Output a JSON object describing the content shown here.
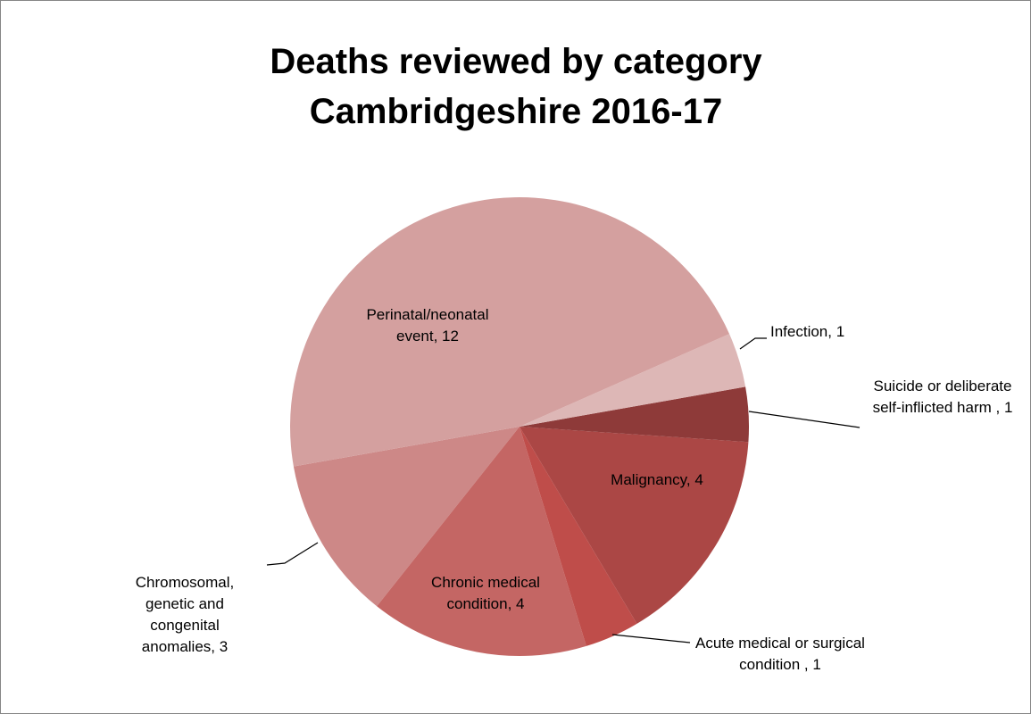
{
  "chart_data": {
    "type": "pie",
    "title": "Deaths reviewed by category Cambridgeshire 2016-17",
    "labels": [
      "Perinatal/neonatal event, 12",
      "Infection, 1",
      "Suicide or deliberate self-inflicted harm , 1",
      "Malignancy, 4",
      "Acute medical or surgical condition , 1",
      "Chronic medical condition, 4",
      "Chromosomal, genetic and congenital anomalies, 3"
    ],
    "values": [
      12,
      1,
      1,
      4,
      1,
      4,
      3
    ],
    "colors": [
      "#d4a09f",
      "#ddb7b6",
      "#8e3a39",
      "#ab4745",
      "#bf4d4a",
      "#c46664",
      "#cd8887"
    ]
  }
}
